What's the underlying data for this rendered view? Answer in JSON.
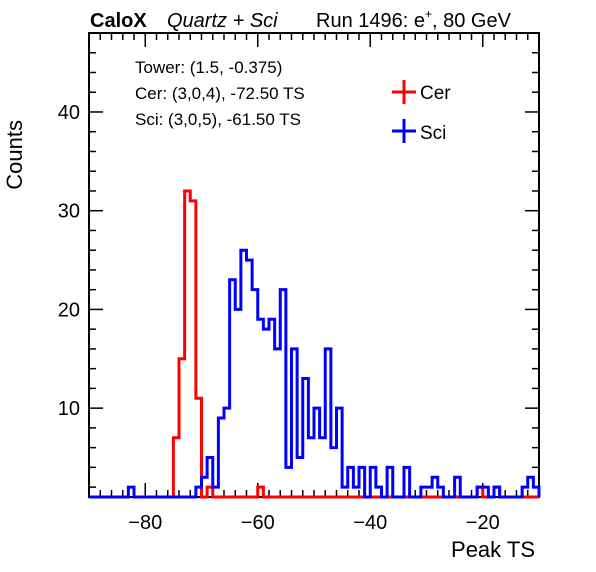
{
  "header": {
    "brand": "CaloX",
    "subtitle": "Quartz + Sci",
    "run": "Run 1496: e",
    "run_sup": "+",
    "energy": ", 80 GeV"
  },
  "info": {
    "line1": "Tower: (1.5, -0.375)",
    "line2": "Cer: (3,0,4), -72.50 TS",
    "line3": "Sci: (3,0,5), -61.50 TS"
  },
  "chart_data": {
    "type": "histogram",
    "xlabel": "Peak TS",
    "ylabel": "Counts",
    "xlim": [
      -90,
      -10
    ],
    "ylim": [
      1,
      48
    ],
    "xticks": [
      -80,
      -60,
      -40,
      -20
    ],
    "yticks": [
      10,
      20,
      30,
      40
    ],
    "bin_width": 1,
    "legend_position": "top-right",
    "series": [
      {
        "name": "Cer",
        "color": "#ff0000",
        "bin_edges": [
          -77,
          -76,
          -75,
          -74,
          -73,
          -72,
          -71,
          -70,
          -69,
          -68,
          -67,
          -66,
          -65,
          -64,
          -63,
          -62,
          -61,
          -60,
          -59,
          -58,
          -57,
          -56,
          -55,
          -54,
          -53,
          -52,
          -51,
          -50,
          -49,
          -48,
          -47,
          -46,
          -45,
          -44,
          -43,
          -42,
          -41,
          -40,
          -39,
          -38,
          -37,
          -36,
          -35,
          -34,
          -33,
          -32,
          -31,
          -30,
          -29,
          -28,
          -27,
          -26,
          -25,
          -24,
          -23,
          -22,
          -21,
          -20,
          -19,
          -18,
          -17,
          -16,
          -15,
          -14,
          -13,
          -12,
          -11,
          -10
        ],
        "counts": [
          1,
          1,
          7,
          15,
          32,
          31,
          11,
          1,
          2,
          1,
          1,
          1,
          1,
          1,
          1,
          1,
          1,
          2,
          1,
          1,
          1,
          1,
          1,
          1,
          1,
          1,
          1,
          1,
          1,
          1,
          1,
          1,
          1,
          1,
          1,
          1,
          1,
          1,
          1,
          1,
          1,
          1,
          1,
          1,
          1,
          1,
          1,
          1,
          1,
          1,
          1,
          1,
          1,
          1,
          1,
          1,
          2,
          1,
          1,
          2,
          1,
          1,
          1,
          1,
          1,
          1,
          1
        ]
      },
      {
        "name": "Sci",
        "color": "#0000ff",
        "bin_edges": [
          -90,
          -89,
          -88,
          -87,
          -86,
          -85,
          -84,
          -83,
          -82,
          -81,
          -80,
          -79,
          -78,
          -77,
          -76,
          -75,
          -74,
          -73,
          -72,
          -71,
          -70,
          -69,
          -68,
          -67,
          -66,
          -65,
          -64,
          -63,
          -62,
          -61,
          -60,
          -59,
          -58,
          -57,
          -56,
          -55,
          -54,
          -53,
          -52,
          -51,
          -50,
          -49,
          -48,
          -47,
          -46,
          -45,
          -44,
          -43,
          -42,
          -41,
          -40,
          -39,
          -38,
          -37,
          -36,
          -35,
          -34,
          -33,
          -32,
          -31,
          -30,
          -29,
          -28,
          -27,
          -26,
          -25,
          -24,
          -23,
          -22,
          -21,
          -20,
          -19,
          -18,
          -17,
          -16,
          -15,
          -14,
          -13,
          -12,
          -11,
          -10
        ],
        "counts": [
          1,
          1,
          1,
          1,
          1,
          1,
          1,
          2,
          1,
          1,
          1,
          1,
          1,
          1,
          1,
          1,
          1,
          1,
          1,
          2,
          3,
          5,
          2,
          9,
          10,
          23,
          20,
          26,
          25,
          22,
          19,
          18,
          19,
          16,
          22,
          4,
          16,
          5,
          13,
          7,
          10,
          7,
          16,
          6,
          10,
          2,
          4,
          2,
          4,
          1,
          4,
          2,
          1,
          4,
          1,
          1,
          4,
          1,
          1,
          2,
          2,
          3,
          2,
          1,
          1,
          3,
          1,
          1,
          1,
          2,
          2,
          1,
          2,
          1,
          1,
          1,
          1,
          2,
          3,
          2
        ]
      }
    ]
  }
}
